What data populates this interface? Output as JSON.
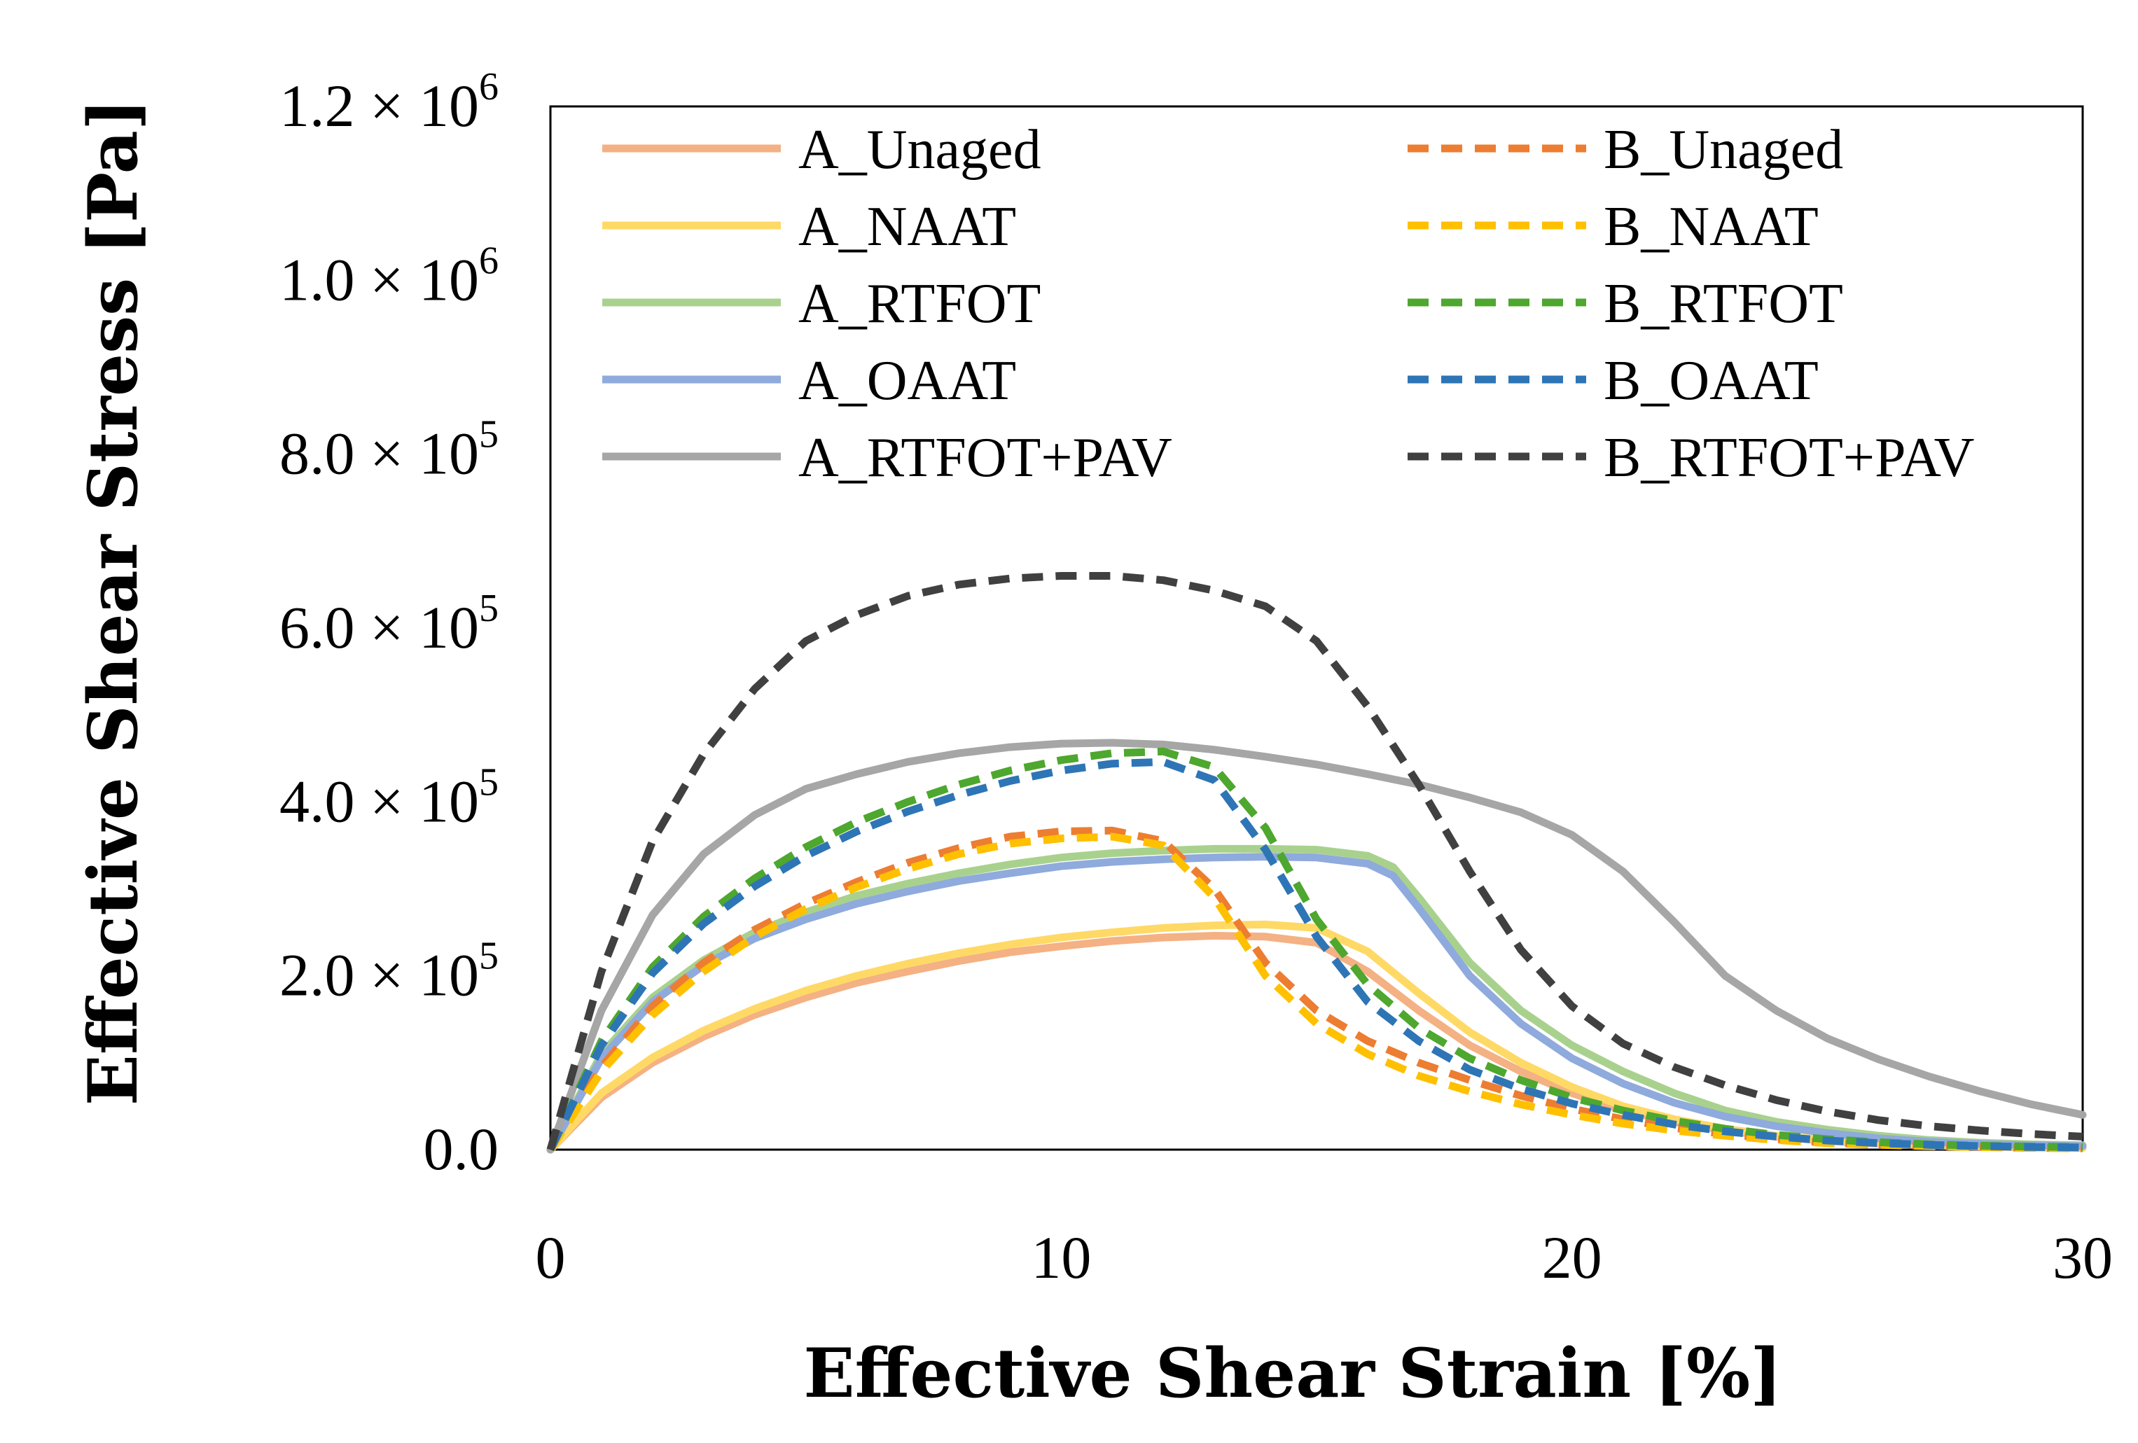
{
  "chart_data": {
    "type": "line",
    "title": "",
    "xlabel": "Effective Shear Strain [%]",
    "ylabel": "Effective Shear Stress [Pa]",
    "xlim": [
      0,
      30
    ],
    "ylim": [
      0,
      1200000
    ],
    "x_ticks": [
      0,
      10,
      20,
      30
    ],
    "x_tick_labels": [
      "0",
      "10",
      "20",
      "30"
    ],
    "y_ticks": [
      0,
      200000,
      400000,
      600000,
      800000,
      1000000,
      1200000
    ],
    "y_tick_labels": [
      {
        "mantissa": "0.0",
        "times": "",
        "exp": ""
      },
      {
        "mantissa": "2.0 ×",
        "times": "10",
        "exp": "5"
      },
      {
        "mantissa": "4.0 ×",
        "times": "10",
        "exp": "5"
      },
      {
        "mantissa": "6.0 ×",
        "times": "10",
        "exp": "5"
      },
      {
        "mantissa": "8.0 ×",
        "times": "10",
        "exp": "5"
      },
      {
        "mantissa": "1.0 ×",
        "times": "10",
        "exp": "6"
      },
      {
        "mantissa": "1.2 ×",
        "times": "10",
        "exp": "6"
      }
    ],
    "grid": false,
    "legend_position": "top",
    "series": [
      {
        "name": "A_Unaged",
        "color": "#F4B183",
        "style": "solid",
        "x": [
          0,
          1,
          2,
          3,
          4,
          5,
          6,
          7,
          8,
          9,
          10,
          11,
          12,
          13,
          14,
          15,
          16,
          17,
          18,
          19,
          20,
          21,
          22,
          23,
          24,
          25,
          26,
          27,
          28,
          29,
          30
        ],
        "y": [
          0,
          60000,
          100000,
          130000,
          155000,
          175000,
          192000,
          205000,
          217000,
          227000,
          234000,
          240000,
          244000,
          246000,
          245000,
          238000,
          205000,
          160000,
          120000,
          90000,
          65000,
          45000,
          32000,
          22000,
          15000,
          10000,
          7000,
          5000,
          3500,
          2500,
          2000
        ]
      },
      {
        "name": "A_NAAT",
        "color": "#FFD966",
        "style": "solid",
        "x": [
          0,
          1,
          2,
          3,
          4,
          5,
          6,
          7,
          8,
          9,
          10,
          11,
          12,
          13,
          14,
          15,
          16,
          17,
          18,
          19,
          20,
          21,
          22,
          23,
          24,
          25,
          26,
          27,
          28,
          29,
          30
        ],
        "y": [
          0,
          65000,
          106000,
          137000,
          162000,
          183000,
          200000,
          214000,
          226000,
          236000,
          244000,
          250000,
          255000,
          258000,
          259000,
          255000,
          228000,
          180000,
          135000,
          100000,
          72000,
          50000,
          35000,
          24000,
          16000,
          11000,
          8000,
          5500,
          4000,
          3000,
          2500
        ]
      },
      {
        "name": "A_RTFOT",
        "color": "#A9D18E",
        "style": "solid",
        "x": [
          0,
          1,
          2,
          3,
          4,
          5,
          6,
          7,
          8,
          9,
          10,
          11,
          12,
          13,
          14,
          15,
          16,
          16.5,
          17,
          18,
          19,
          20,
          21,
          22,
          23,
          24,
          25,
          26,
          27,
          28,
          29,
          30
        ],
        "y": [
          0,
          110000,
          175000,
          218000,
          250000,
          273000,
          292000,
          306000,
          318000,
          328000,
          336000,
          341000,
          344000,
          346000,
          346000,
          345000,
          338000,
          325000,
          290000,
          215000,
          160000,
          120000,
          90000,
          65000,
          45000,
          32000,
          23000,
          16000,
          11000,
          8000,
          6000,
          5000
        ]
      },
      {
        "name": "A_OAAT",
        "color": "#8FAADC",
        "style": "solid",
        "x": [
          0,
          1,
          2,
          3,
          4,
          5,
          6,
          7,
          8,
          9,
          10,
          11,
          12,
          13,
          14,
          15,
          16,
          16.5,
          17,
          18,
          19,
          20,
          21,
          22,
          23,
          24,
          25,
          26,
          27,
          28,
          29,
          30
        ],
        "y": [
          0,
          105000,
          170000,
          212000,
          243000,
          265000,
          283000,
          297000,
          309000,
          318000,
          326000,
          331000,
          334000,
          336000,
          337000,
          336000,
          329000,
          315000,
          278000,
          200000,
          145000,
          105000,
          76000,
          54000,
          38000,
          27000,
          19000,
          13000,
          9000,
          6500,
          5000,
          4000
        ]
      },
      {
        "name": "A_RTFOT+PAV",
        "color": "#A6A6A6",
        "style": "solid",
        "x": [
          0,
          1,
          2,
          3,
          4,
          5,
          6,
          7,
          8,
          9,
          10,
          11,
          12,
          13,
          14,
          15,
          16,
          17,
          18,
          19,
          20,
          21,
          22,
          23,
          24,
          25,
          26,
          27,
          28,
          29,
          30
        ],
        "y": [
          0,
          160000,
          270000,
          340000,
          385000,
          415000,
          432000,
          446000,
          456000,
          463000,
          467000,
          468000,
          466000,
          460000,
          452000,
          443000,
          432000,
          420000,
          405000,
          388000,
          362000,
          320000,
          262000,
          200000,
          160000,
          128000,
          104000,
          84000,
          67000,
          52000,
          40000
        ]
      },
      {
        "name": "B_Unaged",
        "color": "#ED7D31",
        "style": "dashed",
        "x": [
          0,
          1,
          2,
          3,
          4,
          5,
          6,
          7,
          8,
          9,
          10,
          11,
          12,
          13,
          14,
          15,
          16,
          17,
          18,
          19,
          20,
          21,
          22,
          23,
          24,
          25,
          26,
          27,
          28,
          29,
          30
        ],
        "y": [
          0,
          95000,
          165000,
          215000,
          253000,
          283000,
          308000,
          330000,
          347000,
          360000,
          366000,
          367000,
          355000,
          300000,
          215000,
          160000,
          125000,
          100000,
          80000,
          62000,
          47000,
          35000,
          25000,
          18000,
          12000,
          8000,
          6000,
          4000,
          3000,
          2000,
          1500
        ]
      },
      {
        "name": "B_NAAT",
        "color": "#FFC000",
        "style": "dashed",
        "x": [
          0,
          1,
          2,
          3,
          4,
          5,
          6,
          7,
          8,
          9,
          10,
          11,
          12,
          13,
          14,
          15,
          16,
          17,
          18,
          19,
          20,
          21,
          22,
          23,
          24,
          25,
          26,
          27,
          28,
          29,
          30
        ],
        "y": [
          0,
          90000,
          155000,
          205000,
          245000,
          277000,
          302000,
          323000,
          340000,
          352000,
          358000,
          360000,
          350000,
          290000,
          200000,
          145000,
          110000,
          85000,
          67000,
          52000,
          40000,
          30000,
          22000,
          16000,
          11000,
          7500,
          5500,
          4000,
          3000,
          2000,
          1500
        ]
      },
      {
        "name": "B_RTFOT",
        "color": "#4EA72E",
        "style": "dashed",
        "x": [
          0,
          1,
          2,
          3,
          4,
          5,
          6,
          7,
          8,
          9,
          10,
          11,
          12,
          13,
          14,
          15,
          16,
          17,
          18,
          19,
          20,
          21,
          22,
          23,
          24,
          25,
          26,
          27,
          28,
          29,
          30
        ],
        "y": [
          0,
          125000,
          210000,
          268000,
          312000,
          348000,
          377000,
          400000,
          420000,
          436000,
          448000,
          456000,
          458000,
          440000,
          370000,
          265000,
          190000,
          140000,
          105000,
          80000,
          60000,
          45000,
          33000,
          24000,
          17000,
          12000,
          8500,
          6000,
          4500,
          3500,
          3000
        ]
      },
      {
        "name": "B_OAAT",
        "color": "#2E75B6",
        "style": "dashed",
        "x": [
          0,
          1,
          2,
          3,
          4,
          5,
          6,
          7,
          8,
          9,
          10,
          11,
          12,
          13,
          14,
          15,
          16,
          17,
          18,
          19,
          20,
          21,
          22,
          23,
          24,
          25,
          26,
          27,
          28,
          29,
          30
        ],
        "y": [
          0,
          120000,
          203000,
          260000,
          303000,
          338000,
          366000,
          389000,
          408000,
          424000,
          436000,
          444000,
          446000,
          425000,
          345000,
          245000,
          170000,
          125000,
          92000,
          70000,
          53000,
          40000,
          29000,
          21000,
          15000,
          10500,
          7500,
          5500,
          4000,
          3000,
          2500
        ]
      },
      {
        "name": "B_RTFOT+PAV",
        "color": "#404040",
        "style": "dashed",
        "x": [
          0,
          1,
          2,
          3,
          4,
          5,
          6,
          7,
          8,
          9,
          10,
          11,
          12,
          13,
          14,
          15,
          16,
          17,
          18,
          19,
          20,
          21,
          22,
          23,
          24,
          25,
          26,
          27,
          28,
          29,
          30
        ],
        "y": [
          0,
          205000,
          355000,
          455000,
          530000,
          585000,
          615000,
          637000,
          650000,
          657000,
          660000,
          660000,
          655000,
          643000,
          625000,
          585000,
          510000,
          420000,
          320000,
          230000,
          165000,
          122000,
          95000,
          74000,
          57000,
          44000,
          34000,
          27000,
          22000,
          18000,
          15000
        ]
      }
    ]
  }
}
